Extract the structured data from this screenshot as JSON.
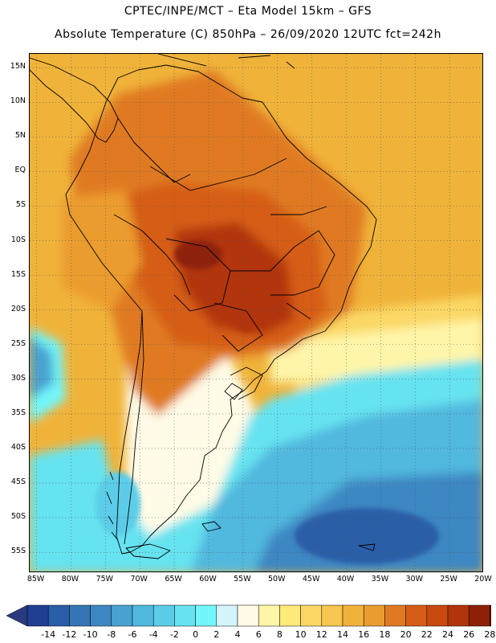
{
  "title": {
    "line1": "CPTEC/INPE/MCT –  Eta Model 15km – GFS",
    "line2": "Absolute Temperature (C) 850hPa – 26/09/2020 12UTC fct=242h"
  },
  "map": {
    "lat_labels": [
      "15N",
      "10N",
      "5N",
      "EQ",
      "5S",
      "10S",
      "15S",
      "20S",
      "25S",
      "30S",
      "35S",
      "40S",
      "45S",
      "50S",
      "55S"
    ],
    "lon_labels": [
      "85W",
      "80W",
      "75W",
      "70W",
      "65W",
      "60W",
      "55W",
      "50W",
      "45W",
      "40W",
      "35W",
      "30W",
      "25W",
      "20W"
    ],
    "lat_range": [
      -58,
      17
    ],
    "lon_range": [
      -86,
      -20
    ],
    "grid": "dotted"
  },
  "legend": {
    "levels": [
      "-14",
      "-12",
      "-10",
      "-8",
      "-6",
      "-4",
      "-2",
      "0",
      "2",
      "4",
      "6",
      "8",
      "10",
      "12",
      "14",
      "16",
      "18",
      "20",
      "22",
      "24",
      "26",
      "28"
    ],
    "colors": [
      "#1f3f93",
      "#2a5ea8",
      "#3575b6",
      "#3d87c2",
      "#4aa2d0",
      "#51b8de",
      "#5ccde8",
      "#66e3f0",
      "#72f6fb",
      "#d4f5fb",
      "#fffbe6",
      "#fff5a8",
      "#ffea7a",
      "#fbd865",
      "#f6c64e",
      "#f0b33a",
      "#eb9c2f",
      "#e07a22",
      "#d65d17",
      "#c9490f",
      "#b2350b",
      "#8e2008",
      "#5e0e0e"
    ],
    "low_arrow_color": "#2a3a80",
    "high_arrow_color": "#6a0018"
  }
}
